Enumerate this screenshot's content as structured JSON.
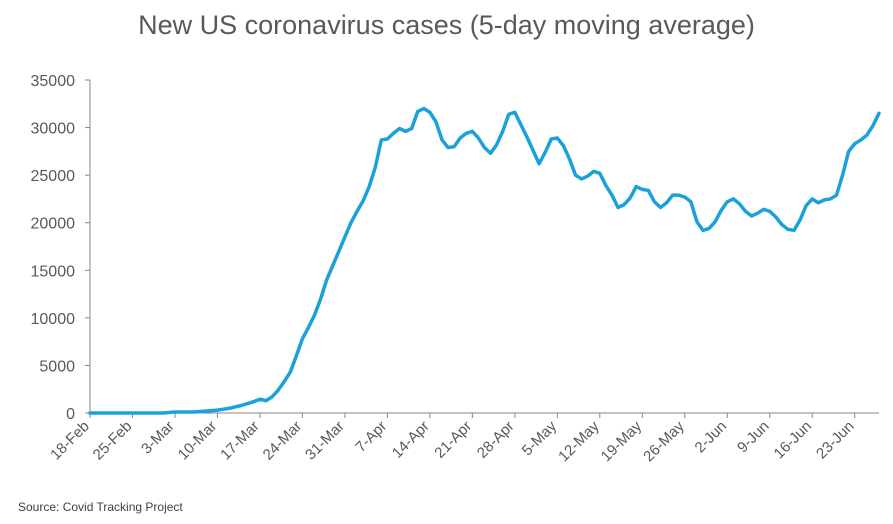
{
  "chart_data": {
    "type": "line",
    "title": "New US coronavirus cases (5-day moving average)",
    "source": "Source: Covid Tracking Project",
    "xlabel": "",
    "ylabel": "",
    "ylim": [
      0,
      35000
    ],
    "yticks": [
      "0",
      "5000",
      "10000",
      "15000",
      "20000",
      "25000",
      "30000",
      "35000"
    ],
    "xticks": [
      "18-Feb",
      "25-Feb",
      "3-Mar",
      "10-Mar",
      "17-Mar",
      "24-Mar",
      "31-Mar",
      "7-Apr",
      "14-Apr",
      "21-Apr",
      "28-Apr",
      "5-May",
      "12-May",
      "19-May",
      "26-May",
      "2-Jun",
      "9-Jun",
      "16-Jun",
      "23-Jun"
    ],
    "grid": false,
    "legend": "none",
    "color": "#1ba1d9",
    "series": [
      {
        "values": [
          0,
          0,
          0,
          0,
          0,
          0,
          0,
          0,
          0,
          0,
          0,
          0,
          0,
          50,
          100,
          100,
          100,
          100,
          150,
          200,
          250,
          300,
          400,
          500,
          650,
          800,
          1000,
          1200,
          1450,
          1300,
          1700,
          2400,
          3300,
          4300,
          6000,
          7800,
          9000,
          10300,
          12000,
          14000,
          15500,
          17000,
          18500,
          20000,
          21200,
          22300,
          23800,
          25800,
          28700,
          28800,
          29400,
          29900,
          29600,
          29900,
          31700,
          32000,
          31600,
          30600,
          28700,
          27900,
          28000,
          28900,
          29400,
          29600,
          28900,
          27900,
          27300,
          28200,
          29600,
          31400,
          31600,
          30300,
          29000,
          27600,
          26200,
          27400,
          28800,
          28900,
          28100,
          26700,
          25000,
          24600,
          24900,
          25400,
          25200,
          23900,
          22900,
          21600,
          21900,
          22600,
          23800,
          23500,
          23400,
          22200,
          21600,
          22100,
          22900,
          22900,
          22700,
          22200,
          20100,
          19200,
          19400,
          20100,
          21300,
          22200,
          22500,
          22000,
          21200,
          20700,
          21000,
          21400,
          21200,
          20600,
          19800,
          19300,
          19200,
          20300,
          21800,
          22500,
          22100,
          22400,
          22500,
          22900,
          25000,
          27500,
          28300,
          28700,
          29200,
          30200,
          31500
        ]
      }
    ]
  }
}
